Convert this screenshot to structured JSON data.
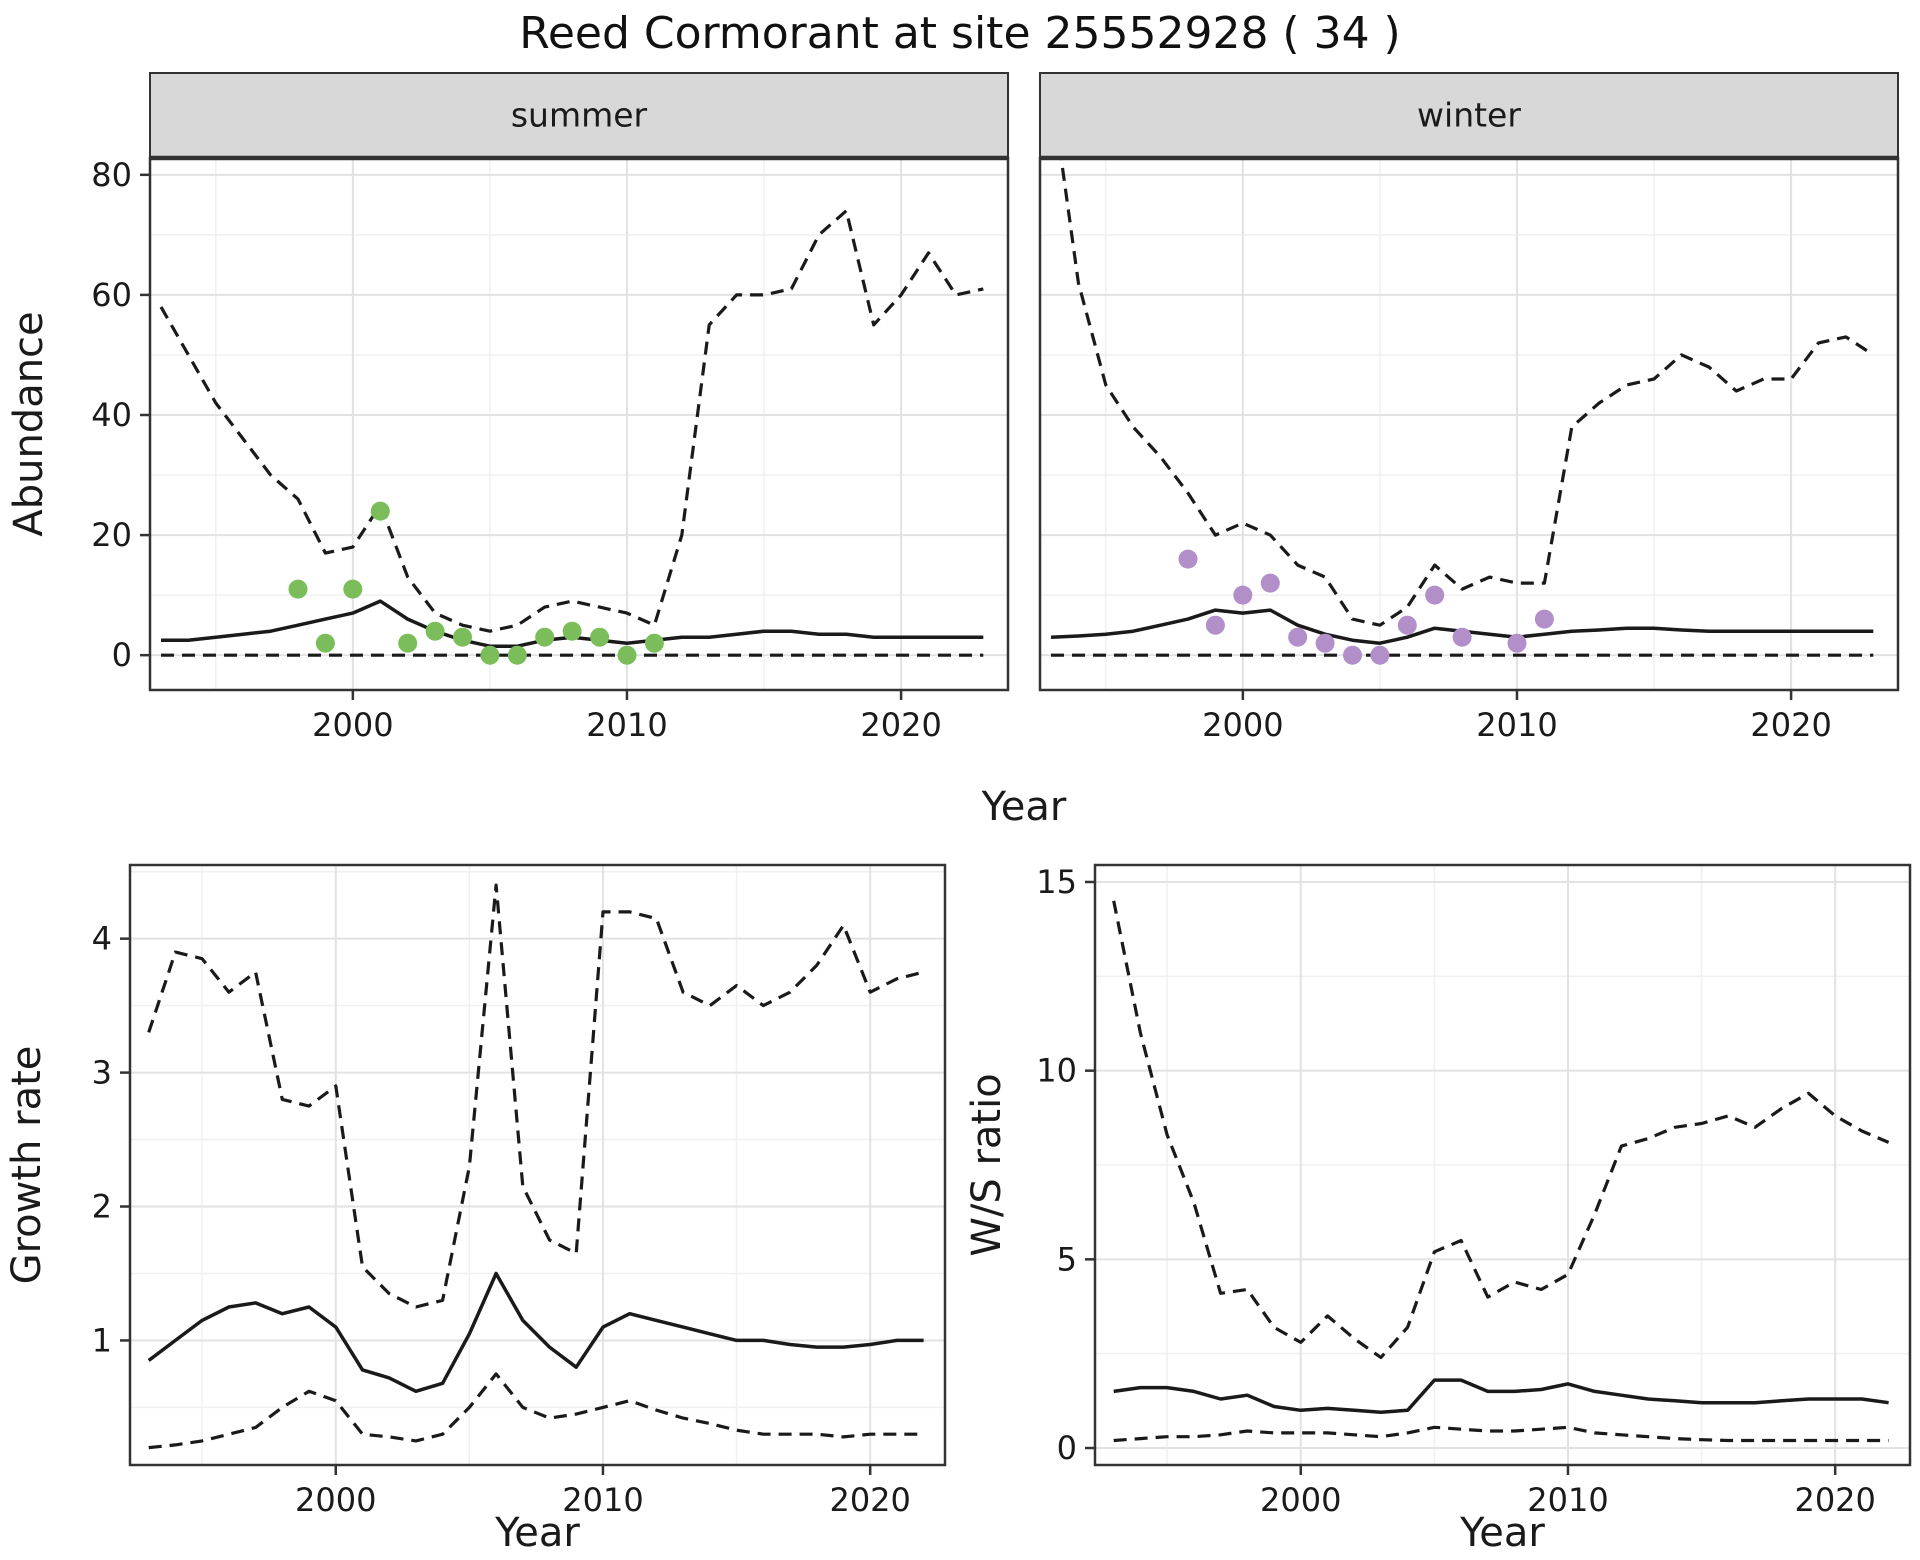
{
  "title": "Reed Cormorant at site 25552928 ( 34 )",
  "xlabel": "Year",
  "colors": {
    "line": "#1a1a1a",
    "summer_points": "#7cbd5b",
    "winter_points": "#b28fc9",
    "strip_bg": "#d8d8d8",
    "strip_border": "#333333",
    "panel_border": "#333333",
    "grid_major": "#e2e2e2",
    "grid_minor": "#f0f0f0",
    "tick_color": "#333333",
    "text_color": "#1a1a1a"
  },
  "chart_data": [
    {
      "id": "abundance-summer",
      "type": "line",
      "facet": "summer",
      "title": "",
      "ylabel": "Abundance",
      "xlabel": "Year",
      "xlim": [
        1992.6,
        2023.9
      ],
      "ylim": [
        -5.8,
        82.8
      ],
      "xticks": [
        2000,
        2010,
        2020
      ],
      "yticks": [
        0,
        20,
        40,
        60,
        80
      ],
      "xminor": [
        1995,
        2005,
        2015
      ],
      "yminor": [
        10,
        30,
        50,
        70
      ],
      "x": [
        1993,
        1994,
        1995,
        1996,
        1997,
        1998,
        1999,
        2000,
        2001,
        2002,
        2003,
        2004,
        2005,
        2006,
        2007,
        2008,
        2009,
        2010,
        2011,
        2012,
        2013,
        2014,
        2015,
        2016,
        2017,
        2018,
        2019,
        2020,
        2021,
        2022,
        2023
      ],
      "series": [
        {
          "name": "upper-ci",
          "style": "dashed",
          "values": [
            58,
            50,
            42,
            36,
            30,
            26,
            17,
            18,
            25,
            13,
            7,
            5,
            4,
            5,
            8,
            9,
            8,
            7,
            5,
            20,
            55,
            60,
            60,
            61,
            70,
            74,
            55,
            60,
            67,
            60,
            61
          ]
        },
        {
          "name": "median",
          "style": "solid",
          "values": [
            2.5,
            2.5,
            3,
            3.5,
            4,
            5,
            6,
            7,
            9,
            6,
            4,
            2.5,
            1.5,
            1.5,
            2.5,
            3,
            2.5,
            2,
            2.5,
            3,
            3,
            3.5,
            4,
            4,
            3.5,
            3.5,
            3,
            3,
            3,
            3,
            3
          ]
        },
        {
          "name": "lower-ci",
          "style": "dashed",
          "values": [
            0,
            0,
            0,
            0,
            0,
            0,
            0,
            0,
            0,
            0,
            0,
            0,
            0,
            0,
            0,
            0,
            0,
            0,
            0,
            0,
            0,
            0,
            0,
            0,
            0,
            0,
            0,
            0,
            0,
            0,
            0
          ]
        }
      ],
      "points": {
        "name": "observed-summer",
        "color_key": "summer_points",
        "x": [
          1998,
          1999,
          2000,
          2001,
          2002,
          2003,
          2004,
          2005,
          2006,
          2007,
          2008,
          2009,
          2010,
          2011
        ],
        "y": [
          11,
          2,
          11,
          24,
          2,
          4,
          3,
          0,
          0,
          3,
          4,
          3,
          0,
          2
        ]
      }
    },
    {
      "id": "abundance-winter",
      "type": "line",
      "facet": "winter",
      "title": "",
      "ylabel": "Abundance",
      "xlabel": "Year",
      "xlim": [
        1992.6,
        2023.9
      ],
      "ylim": [
        -5.8,
        82.8
      ],
      "xticks": [
        2000,
        2010,
        2020
      ],
      "yticks": [
        0,
        20,
        40,
        60,
        80
      ],
      "xminor": [
        1995,
        2005,
        2015
      ],
      "yminor": [
        10,
        30,
        50,
        70
      ],
      "x": [
        1993,
        1994,
        1995,
        1996,
        1997,
        1998,
        1999,
        2000,
        2001,
        2002,
        2003,
        2004,
        2005,
        2006,
        2007,
        2008,
        2009,
        2010,
        2011,
        2012,
        2013,
        2014,
        2015,
        2016,
        2017,
        2018,
        2019,
        2020,
        2021,
        2022,
        2023
      ],
      "series": [
        {
          "name": "upper-ci",
          "style": "dashed",
          "values": [
            95,
            62,
            45,
            38,
            33,
            27,
            20,
            22,
            20,
            15,
            13,
            6,
            5,
            8,
            15,
            11,
            13,
            12,
            12,
            38,
            42,
            45,
            46,
            50,
            48,
            44,
            46,
            46,
            52,
            53,
            50
          ]
        },
        {
          "name": "median",
          "style": "solid",
          "values": [
            3,
            3.2,
            3.5,
            4,
            5,
            6,
            7.5,
            7,
            7.5,
            5,
            3.5,
            2.5,
            2,
            3,
            4.5,
            4,
            3.5,
            3,
            3.5,
            4,
            4.2,
            4.5,
            4.5,
            4.2,
            4,
            4,
            4,
            4,
            4,
            4,
            4
          ]
        },
        {
          "name": "lower-ci",
          "style": "dashed",
          "values": [
            0,
            0,
            0,
            0,
            0,
            0,
            0,
            0,
            0,
            0,
            0,
            0,
            0,
            0,
            0,
            0,
            0,
            0,
            0,
            0,
            0,
            0,
            0,
            0,
            0,
            0,
            0,
            0,
            0,
            0,
            0
          ]
        }
      ],
      "points": {
        "name": "observed-winter",
        "color_key": "winter_points",
        "x": [
          1998,
          1999,
          2000,
          2001,
          2002,
          2003,
          2004,
          2005,
          2006,
          2007,
          2008,
          2010,
          2011
        ],
        "y": [
          16,
          5,
          10,
          12,
          3,
          2,
          0,
          0,
          5,
          10,
          3,
          2,
          6
        ]
      }
    },
    {
      "id": "growth-rate",
      "type": "line",
      "facet": null,
      "title": "",
      "ylabel": "Growth rate",
      "xlabel": "Year",
      "xlim": [
        1992.3,
        2022.8
      ],
      "ylim": [
        0.07,
        4.55
      ],
      "xticks": [
        2000,
        2010,
        2020
      ],
      "yticks": [
        1,
        2,
        3,
        4
      ],
      "xminor": [
        1995,
        2005,
        2015
      ],
      "yminor": [
        0.5,
        1.5,
        2.5,
        3.5,
        4.5
      ],
      "x": [
        1993,
        1994,
        1995,
        1996,
        1997,
        1998,
        1999,
        2000,
        2001,
        2002,
        2003,
        2004,
        2005,
        2006,
        2007,
        2008,
        2009,
        2010,
        2011,
        2012,
        2013,
        2014,
        2015,
        2016,
        2017,
        2018,
        2019,
        2020,
        2021,
        2022
      ],
      "series": [
        {
          "name": "upper-ci",
          "style": "dashed",
          "values": [
            3.3,
            3.9,
            3.85,
            3.6,
            3.75,
            2.8,
            2.75,
            2.9,
            1.55,
            1.35,
            1.25,
            1.3,
            2.3,
            4.4,
            2.15,
            1.75,
            1.65,
            4.2,
            4.2,
            4.15,
            3.6,
            3.5,
            3.65,
            3.5,
            3.6,
            3.8,
            4.1,
            3.6,
            3.7,
            3.75
          ]
        },
        {
          "name": "median",
          "style": "solid",
          "values": [
            0.85,
            1.0,
            1.15,
            1.25,
            1.28,
            1.2,
            1.25,
            1.1,
            0.78,
            0.72,
            0.62,
            0.68,
            1.05,
            1.5,
            1.15,
            0.95,
            0.8,
            1.1,
            1.2,
            1.15,
            1.1,
            1.05,
            1.0,
            1.0,
            0.97,
            0.95,
            0.95,
            0.97,
            1.0,
            1.0
          ]
        },
        {
          "name": "lower-ci",
          "style": "dashed",
          "values": [
            0.2,
            0.22,
            0.25,
            0.3,
            0.35,
            0.5,
            0.62,
            0.55,
            0.3,
            0.28,
            0.25,
            0.3,
            0.5,
            0.75,
            0.5,
            0.42,
            0.45,
            0.5,
            0.55,
            0.48,
            0.42,
            0.38,
            0.33,
            0.3,
            0.3,
            0.3,
            0.28,
            0.3,
            0.3,
            0.3
          ]
        }
      ],
      "points": null
    },
    {
      "id": "ws-ratio",
      "type": "line",
      "facet": null,
      "title": "",
      "ylabel": "W/S ratio",
      "xlabel": "Year",
      "xlim": [
        1992.3,
        2022.8
      ],
      "ylim": [
        -0.45,
        15.45
      ],
      "xticks": [
        2000,
        2010,
        2020
      ],
      "yticks": [
        0,
        5,
        10,
        15
      ],
      "xminor": [
        1995,
        2005,
        2015
      ],
      "yminor": [
        2.5,
        7.5,
        12.5
      ],
      "x": [
        1993,
        1994,
        1995,
        1996,
        1997,
        1998,
        1999,
        2000,
        2001,
        2002,
        2003,
        2004,
        2005,
        2006,
        2007,
        2008,
        2009,
        2010,
        2011,
        2012,
        2013,
        2014,
        2015,
        2016,
        2017,
        2018,
        2019,
        2020,
        2021,
        2022
      ],
      "series": [
        {
          "name": "upper-ci",
          "style": "dashed",
          "values": [
            14.5,
            11,
            8.3,
            6.5,
            4.1,
            4.2,
            3.2,
            2.8,
            3.5,
            2.9,
            2.4,
            3.2,
            5.2,
            5.5,
            4.0,
            4.4,
            4.2,
            4.6,
            6.2,
            8.0,
            8.2,
            8.5,
            8.6,
            8.8,
            8.5,
            9.0,
            9.4,
            8.8,
            8.4,
            8.1
          ]
        },
        {
          "name": "median",
          "style": "solid",
          "values": [
            1.5,
            1.6,
            1.6,
            1.5,
            1.3,
            1.4,
            1.1,
            1.0,
            1.05,
            1.0,
            0.95,
            1.0,
            1.8,
            1.8,
            1.5,
            1.5,
            1.55,
            1.7,
            1.5,
            1.4,
            1.3,
            1.25,
            1.2,
            1.2,
            1.2,
            1.25,
            1.3,
            1.3,
            1.3,
            1.2
          ]
        },
        {
          "name": "lower-ci",
          "style": "dashed",
          "values": [
            0.2,
            0.25,
            0.3,
            0.3,
            0.35,
            0.45,
            0.4,
            0.4,
            0.4,
            0.35,
            0.3,
            0.4,
            0.55,
            0.5,
            0.45,
            0.45,
            0.5,
            0.55,
            0.4,
            0.35,
            0.3,
            0.25,
            0.22,
            0.2,
            0.2,
            0.2,
            0.2,
            0.2,
            0.2,
            0.2
          ]
        }
      ],
      "points": null
    }
  ]
}
